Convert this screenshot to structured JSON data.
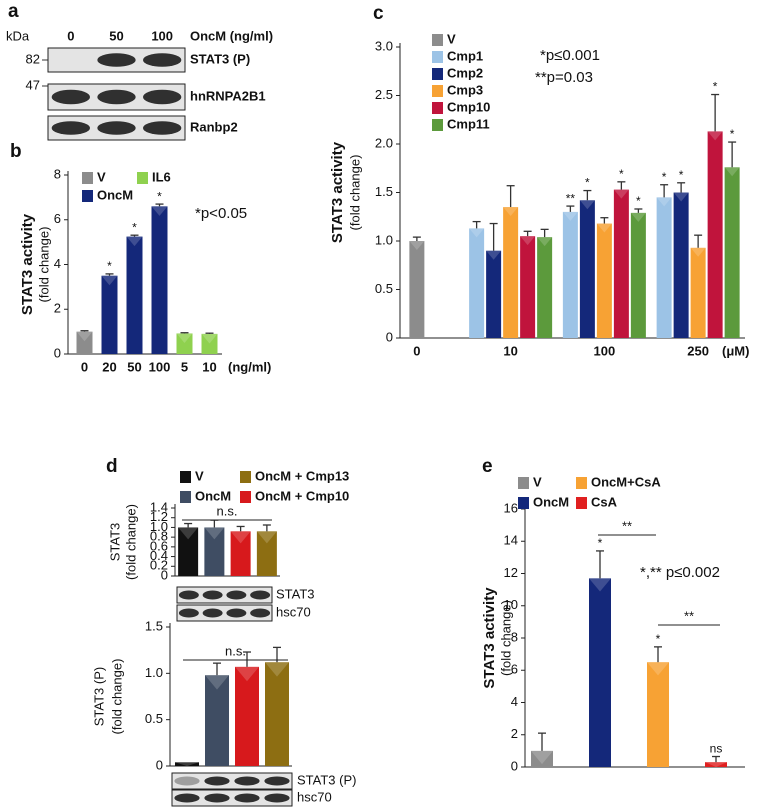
{
  "blots": [
    {
      "panel": "a",
      "unit": "kDa",
      "lane_title": "OncM (ng/ml)",
      "lanes": [
        "0",
        "50",
        "100"
      ],
      "markers": [
        82,
        47
      ],
      "rows": [
        "STAT3 (P)",
        "hnRNPA2B1",
        "Ranbp2"
      ]
    },
    {
      "rows": [
        "STAT3",
        "hsc70"
      ]
    },
    {
      "rows": [
        "STAT3 (P)",
        "hsc70"
      ]
    }
  ],
  "chart_data": [
    {
      "type": "bar",
      "panel": "b",
      "ylabel": "STAT3 activity",
      "ylabel_sub": "(fold change)",
      "xlabel": "(ng/ml)",
      "categories": [
        "0",
        "20",
        "50",
        "100",
        "5",
        "10"
      ],
      "series": [
        {
          "name": "V",
          "color": "#8c8c8c",
          "values": [
            1.0,
            null,
            null,
            null,
            null,
            null
          ],
          "errors": [
            0.04,
            null,
            null,
            null,
            null,
            null
          ]
        },
        {
          "name": "OncM",
          "color": "#14287a",
          "values": [
            null,
            3.5,
            5.25,
            6.6,
            null,
            null
          ],
          "errors": [
            null,
            0.08,
            0.06,
            0.1,
            null,
            null
          ],
          "significance": [
            null,
            "*",
            "*",
            "*",
            null,
            null
          ]
        },
        {
          "name": "IL6",
          "color": "#8fd14f",
          "values": [
            null,
            null,
            null,
            null,
            0.92,
            0.9
          ],
          "errors": [
            null,
            null,
            null,
            null,
            0.03,
            0.03
          ]
        }
      ],
      "ylim": [
        0,
        8
      ],
      "yticks": [
        0,
        2,
        4,
        6,
        8
      ],
      "annotations": [
        "*p<0.05"
      ]
    },
    {
      "type": "bar",
      "panel": "c",
      "ylabel": "STAT3 activity",
      "ylabel_sub": "(fold change)",
      "xlabel": "(μM)",
      "categories": [
        "0",
        "10",
        "100",
        "250"
      ],
      "series": [
        {
          "name": "V",
          "color": "#8c8c8c",
          "values": [
            1.0,
            null,
            null,
            null
          ],
          "errors": [
            0.04,
            null,
            null,
            null
          ]
        },
        {
          "name": "Cmp1",
          "color": "#9cc3e6",
          "values": [
            null,
            1.13,
            1.3,
            1.45
          ],
          "errors": [
            null,
            0.07,
            0.06,
            0.13
          ],
          "significance": [
            null,
            null,
            "**",
            "*"
          ]
        },
        {
          "name": "Cmp2",
          "color": "#14287a",
          "values": [
            null,
            0.9,
            1.42,
            1.5
          ],
          "errors": [
            null,
            0.28,
            0.1,
            0.1
          ],
          "significance": [
            null,
            null,
            "*",
            "*"
          ]
        },
        {
          "name": "Cmp3",
          "color": "#f7a234",
          "values": [
            null,
            1.35,
            1.18,
            0.93
          ],
          "errors": [
            null,
            0.22,
            0.06,
            0.13
          ]
        },
        {
          "name": "Cmp10",
          "color": "#c0143c",
          "values": [
            null,
            1.05,
            1.53,
            2.13
          ],
          "errors": [
            null,
            0.05,
            0.08,
            0.38
          ],
          "significance": [
            null,
            null,
            "*",
            "*"
          ]
        },
        {
          "name": "Cmp11",
          "color": "#5c9a3c",
          "values": [
            null,
            1.04,
            1.29,
            1.76
          ],
          "errors": [
            null,
            0.08,
            0.04,
            0.26
          ],
          "significance": [
            null,
            null,
            "*",
            "*"
          ]
        }
      ],
      "ylim": [
        0,
        3.0
      ],
      "yticks": [
        0,
        0.5,
        {
          "value": 1,
          "label": "1.0"
        },
        1.5,
        {
          "value": 2,
          "label": "2.0"
        },
        2.5,
        {
          "value": 3,
          "label": "3.0"
        }
      ],
      "annotations": [
        "*p≤0.001",
        "**p=0.03"
      ]
    },
    {
      "type": "bar",
      "panel": "d",
      "ylabel": "STAT3",
      "ylabel_sub": "(fold change)",
      "categories": [
        null,
        null,
        null,
        null
      ],
      "series": [
        {
          "name": "V",
          "color": "#111111",
          "values": [
            1.0,
            null,
            null,
            null
          ],
          "errors": [
            0.08,
            null,
            null,
            null
          ]
        },
        {
          "name": "OncM",
          "color": "#3f4d63",
          "values": [
            null,
            1.0,
            null,
            null
          ],
          "errors": [
            null,
            0.15,
            null,
            null
          ]
        },
        {
          "name": "OncM + Cmp10",
          "color": "#d7191c",
          "values": [
            null,
            null,
            0.92,
            null
          ],
          "errors": [
            null,
            null,
            0.1,
            null
          ]
        },
        {
          "name": "OncM + Cmp13",
          "color": "#8d6e12",
          "values": [
            null,
            null,
            null,
            0.92
          ],
          "errors": [
            null,
            null,
            null,
            0.13
          ]
        }
      ],
      "ylim": [
        0,
        1.4
      ],
      "yticks": [
        0,
        0.2,
        0.4,
        0.6,
        0.8,
        {
          "value": 1,
          "label": "1.0"
        },
        1.2,
        1.4
      ],
      "bracket_labels": [
        "n.s."
      ]
    },
    {
      "type": "bar",
      "ylabel": "STAT3 (P)",
      "ylabel_sub": "(fold change)",
      "categories": [
        null,
        null,
        null,
        null
      ],
      "series": [
        {
          "color": "#111111",
          "values": [
            0.04,
            null,
            null,
            null
          ]
        },
        {
          "color": "#3f4d63",
          "values": [
            null,
            0.98,
            null,
            null
          ],
          "errors": [
            null,
            0.13,
            null,
            null
          ]
        },
        {
          "color": "#d7191c",
          "values": [
            null,
            null,
            1.07,
            null
          ],
          "errors": [
            null,
            null,
            0.16,
            null
          ]
        },
        {
          "color": "#8d6e12",
          "values": [
            null,
            null,
            null,
            1.12
          ],
          "errors": [
            null,
            null,
            null,
            0.16
          ]
        }
      ],
      "ylim": [
        0,
        1.5
      ],
      "yticks": [
        0,
        0.5,
        {
          "value": 1,
          "label": "1.0"
        },
        1.5
      ],
      "bracket_labels": [
        "n.s."
      ]
    },
    {
      "type": "bar",
      "panel": "e",
      "ylabel": "STAT3 activity",
      "ylabel_sub": "(fold change)",
      "categories": [
        null,
        null,
        null,
        null
      ],
      "series": [
        {
          "name": "V",
          "color": "#8c8c8c",
          "values": [
            1.0,
            null,
            null,
            null
          ],
          "errors": [
            1.1,
            null,
            null,
            null
          ]
        },
        {
          "name": "OncM",
          "color": "#14287a",
          "values": [
            null,
            11.7,
            null,
            null
          ],
          "errors": [
            null,
            1.7,
            null,
            null
          ],
          "significance": [
            null,
            "*",
            null,
            null
          ]
        },
        {
          "name": "OncM+CsA",
          "color": "#f7a234",
          "values": [
            null,
            null,
            6.5,
            null
          ],
          "errors": [
            null,
            null,
            0.95,
            null
          ],
          "significance": [
            null,
            null,
            "*",
            null
          ]
        },
        {
          "name": "CsA",
          "color": "#e02020",
          "values": [
            null,
            null,
            null,
            0.3
          ],
          "errors": [
            null,
            null,
            null,
            0.35
          ],
          "significance": [
            null,
            null,
            null,
            "ns"
          ]
        }
      ],
      "ylim": [
        0,
        16
      ],
      "yticks": [
        0,
        2,
        4,
        6,
        8,
        10,
        12,
        14,
        16
      ],
      "annotations": [
        "*,** p≤0.002"
      ],
      "bracket_labels": [
        "**",
        "**"
      ]
    }
  ]
}
